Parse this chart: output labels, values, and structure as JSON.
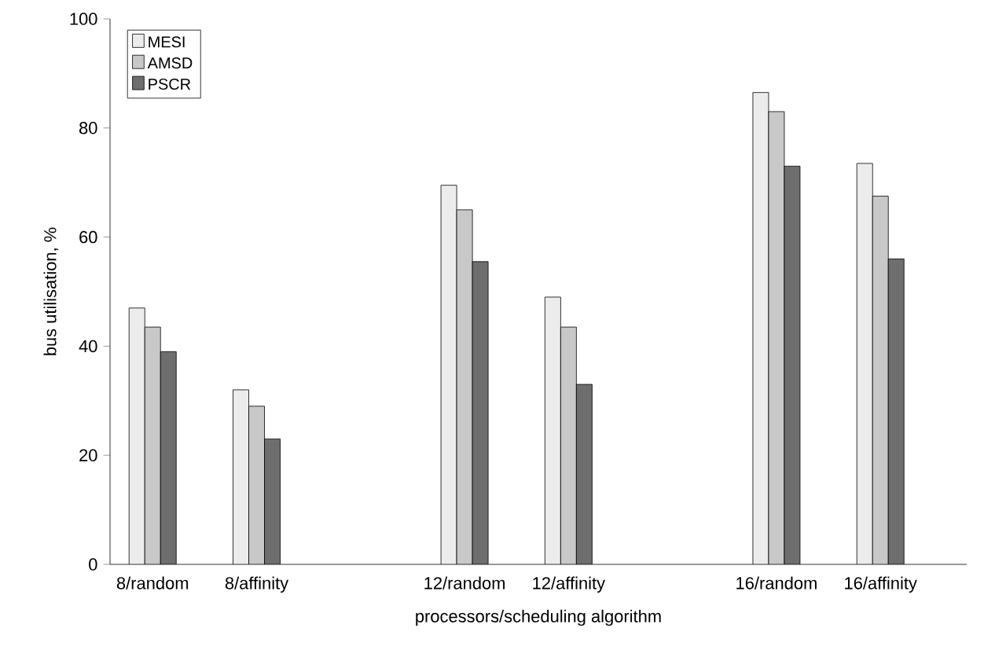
{
  "chart_data": {
    "type": "bar",
    "xlabel": "processors/scheduling algorithm",
    "ylabel": "bus utilisation, %",
    "categories": [
      "8/random",
      "8/affinity",
      null,
      "12/random",
      "12/affinity",
      null,
      "16/random",
      "16/affinity"
    ],
    "series": [
      {
        "name": "MESI",
        "color": "#ececec",
        "values": [
          47,
          32,
          null,
          69.5,
          49,
          null,
          86.5,
          73.5
        ]
      },
      {
        "name": "AMSD",
        "color": "#c8c8c8",
        "values": [
          43.5,
          29,
          null,
          65,
          43.5,
          null,
          83,
          67.5
        ]
      },
      {
        "name": "PSCR",
        "color": "#6e6e6e",
        "values": [
          39,
          23,
          null,
          55.5,
          33,
          null,
          73,
          56
        ]
      }
    ],
    "ylim": [
      0,
      100
    ],
    "yticks": [
      0,
      20,
      40,
      60,
      80,
      100
    ],
    "grid": false,
    "legend": "top left"
  }
}
